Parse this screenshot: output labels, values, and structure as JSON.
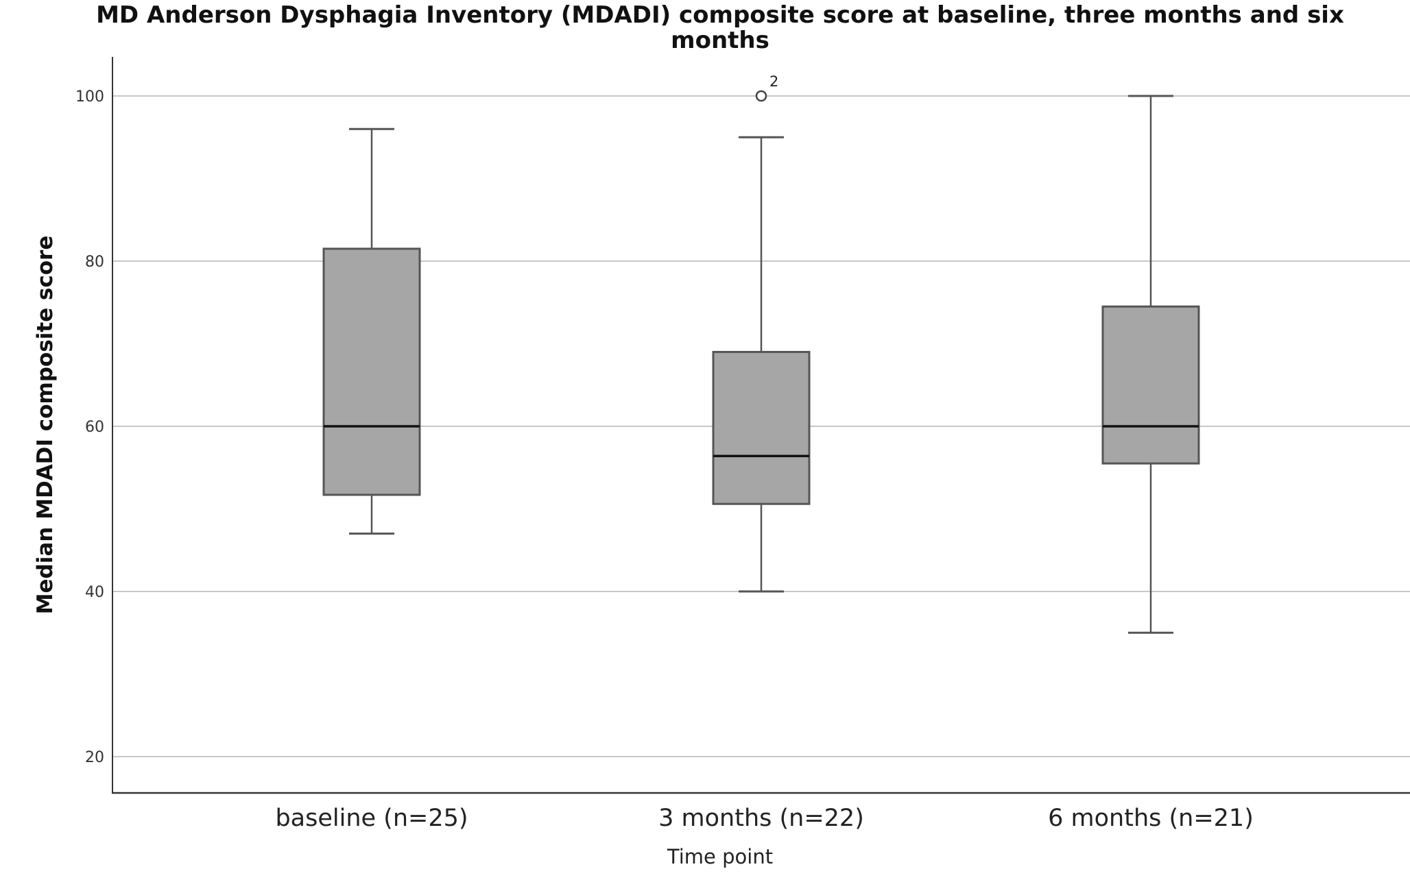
{
  "chart_data": {
    "type": "box",
    "title": [
      "MD Anderson Dysphagia Inventory (MDADI) composite score at baseline, three months and six",
      "months"
    ],
    "xlabel": "Time point",
    "ylabel": "Median MDADI composite score",
    "ylim": [
      15.5,
      105
    ],
    "yticks": [
      20,
      40,
      60,
      80,
      100
    ],
    "grid": "horizontal",
    "box_color": "#a6a6a6",
    "categories": [
      "baseline (n=25)",
      "3 months (n=22)",
      "6 months (n=21)"
    ],
    "boxes": [
      {
        "whisker_low": 47,
        "q1": 51.7,
        "median": 60,
        "q3": 81.5,
        "whisker_high": 96,
        "outliers": []
      },
      {
        "whisker_low": 40,
        "q1": 50.6,
        "median": 56.4,
        "q3": 69,
        "whisker_high": 95,
        "outliers": [
          {
            "value": 100,
            "label": "2"
          }
        ]
      },
      {
        "whisker_low": 35,
        "q1": 55.5,
        "median": 60,
        "q3": 74.5,
        "whisker_high": 100,
        "outliers": []
      }
    ]
  }
}
